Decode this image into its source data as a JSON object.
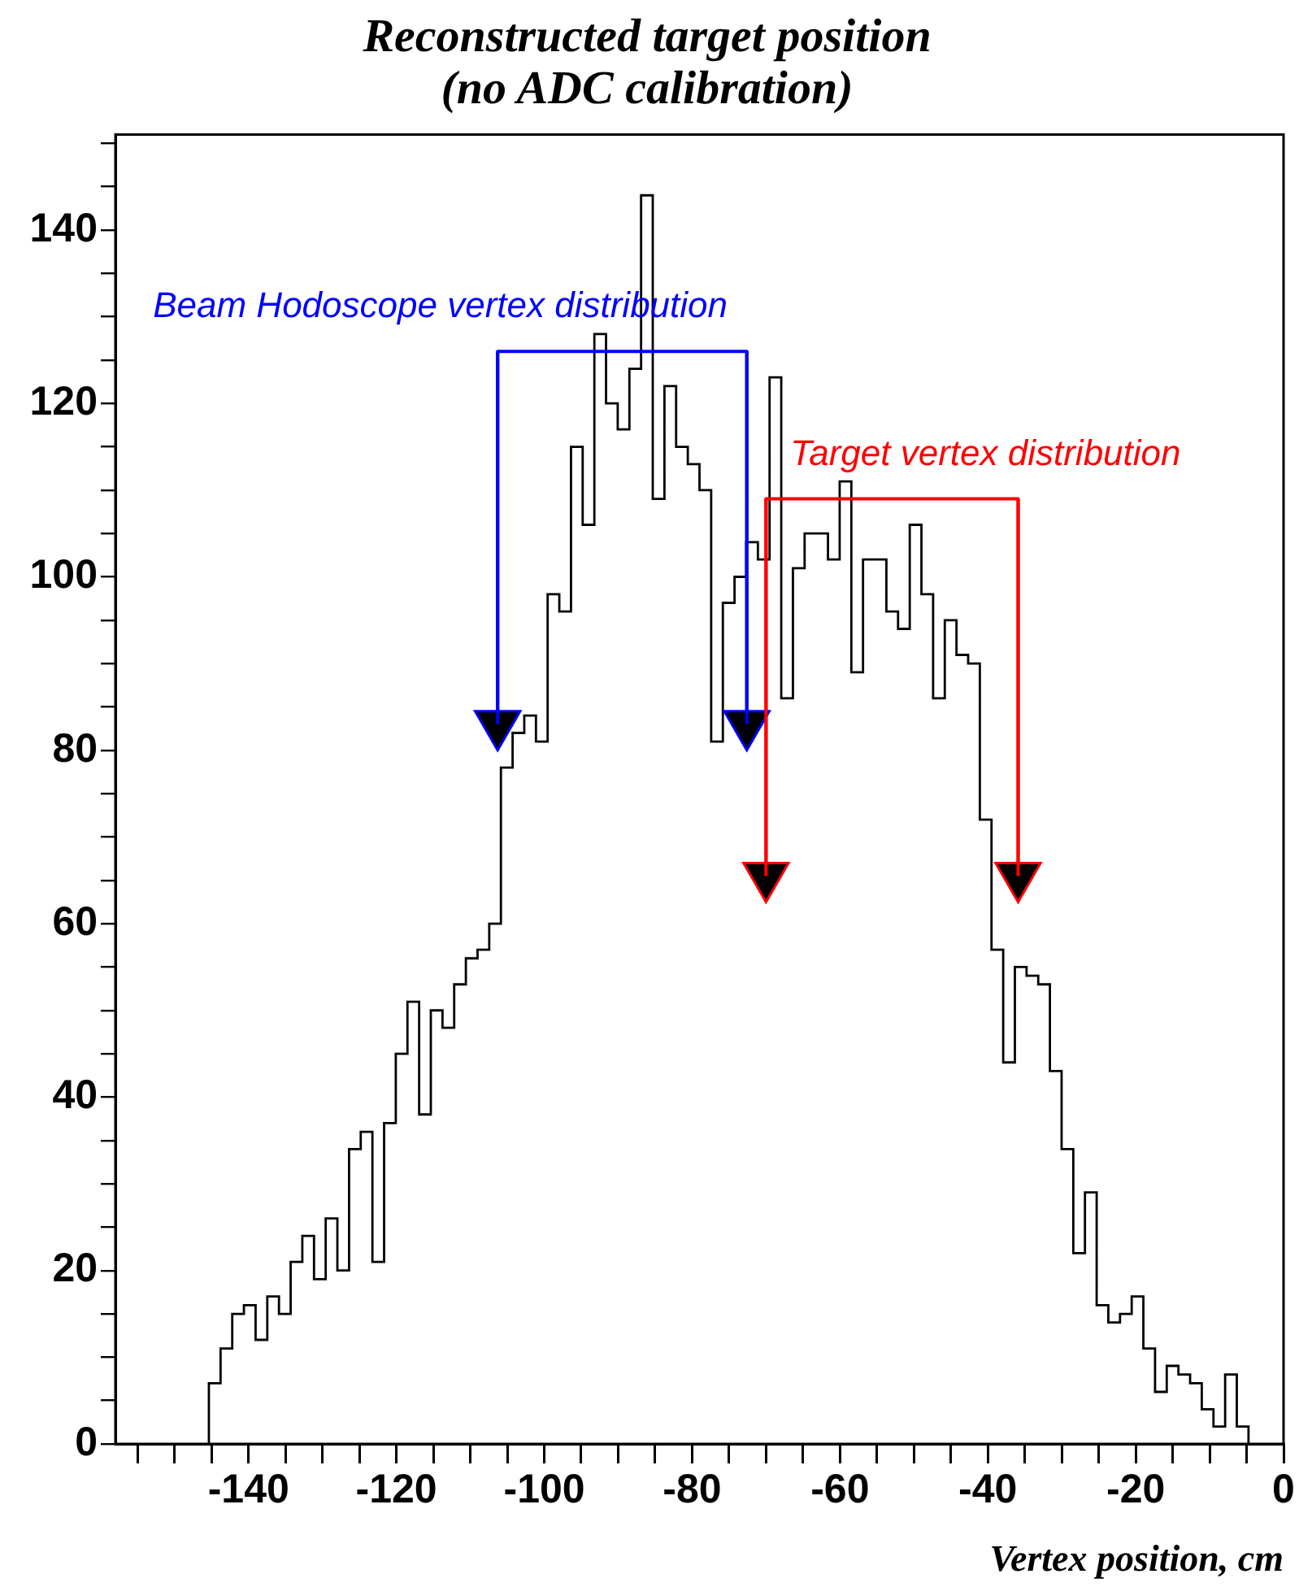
{
  "chart_data": {
    "type": "histogram",
    "title": "Reconstructed target position\n(no ADC calibration)",
    "xlabel": "Vertex position, cm",
    "xlim": [
      -158,
      0
    ],
    "xticks": [
      {
        "value": -155,
        "label": null
      },
      {
        "value": -150,
        "label": null
      },
      {
        "value": -145,
        "label": null
      },
      -140,
      {
        "value": -135,
        "label": null
      },
      {
        "value": -130,
        "label": null
      },
      {
        "value": -125,
        "label": null
      },
      -120,
      {
        "value": -115,
        "label": null
      },
      {
        "value": -110,
        "label": null
      },
      {
        "value": -105,
        "label": null
      },
      -100,
      {
        "value": -95,
        "label": null
      },
      {
        "value": -90,
        "label": null
      },
      {
        "value": -85,
        "label": null
      },
      -80,
      {
        "value": -75,
        "label": null
      },
      {
        "value": -70,
        "label": null
      },
      {
        "value": -65,
        "label": null
      },
      -60,
      {
        "value": -55,
        "label": null
      },
      {
        "value": -50,
        "label": null
      },
      {
        "value": -45,
        "label": null
      },
      -40,
      {
        "value": -35,
        "label": null
      },
      {
        "value": -30,
        "label": null
      },
      {
        "value": -25,
        "label": null
      },
      -20,
      {
        "value": -15,
        "label": null
      },
      {
        "value": -10,
        "label": null
      },
      {
        "value": -5,
        "label": null
      },
      0
    ],
    "ylim": [
      0,
      151
    ],
    "yticks": [
      0,
      {
        "value": 5,
        "label": null
      },
      {
        "value": 10,
        "label": null
      },
      {
        "value": 15,
        "label": null
      },
      20,
      {
        "value": 25,
        "label": null
      },
      {
        "value": 30,
        "label": null
      },
      {
        "value": 35,
        "label": null
      },
      40,
      {
        "value": 45,
        "label": null
      },
      {
        "value": 50,
        "label": null
      },
      {
        "value": 55,
        "label": null
      },
      60,
      {
        "value": 65,
        "label": null
      },
      {
        "value": 70,
        "label": null
      },
      {
        "value": 75,
        "label": null
      },
      80,
      {
        "value": 85,
        "label": null
      },
      {
        "value": 90,
        "label": null
      },
      {
        "value": 95,
        "label": null
      },
      100,
      {
        "value": 105,
        "label": null
      },
      {
        "value": 110,
        "label": null
      },
      {
        "value": 115,
        "label": null
      },
      120,
      {
        "value": 125,
        "label": null
      },
      {
        "value": 130,
        "label": null
      },
      {
        "value": 135,
        "label": null
      },
      140,
      {
        "value": 145,
        "label": null
      },
      {
        "value": 150,
        "label": null
      }
    ],
    "series": [
      {
        "type": "histogram",
        "color": "#000000",
        "bins": [
          -145.36,
          -143.78,
          -142.2,
          -140.62,
          -139.04,
          -137.46,
          -135.88,
          -134.3,
          -132.72,
          -131.14,
          -129.56,
          -127.98,
          -126.4,
          -124.82,
          -123.24,
          -121.66,
          -120.08,
          -118.5,
          -116.92,
          -115.34,
          -113.76,
          -112.18,
          -110.6,
          -109.02,
          -107.44,
          -105.86,
          -104.28,
          -102.7,
          -101.12,
          -99.54,
          -97.96,
          -96.38,
          -94.8,
          -93.22,
          -91.64,
          -90.06,
          -88.48,
          -86.9,
          -85.32,
          -83.74,
          -82.16,
          -80.58,
          -79,
          -77.42,
          -75.84,
          -74.26,
          -72.68,
          -71.1,
          -69.52,
          -67.94,
          -66.36,
          -64.78,
          -63.2,
          -61.62,
          -60.04,
          -58.46,
          -56.88,
          -55.3,
          -53.72,
          -52.14,
          -50.56,
          -48.98,
          -47.4,
          -45.82,
          -44.24,
          -42.66,
          -41.08,
          -39.5,
          -37.92,
          -36.34,
          -34.76,
          -33.18,
          -31.6,
          -30.02,
          -28.44,
          -26.86,
          -25.28,
          -23.7,
          -22.12,
          -20.54,
          -18.96,
          -17.38,
          -15.8,
          -14.22,
          -12.64,
          -11.06,
          -9.48,
          -7.9,
          -6.32,
          -4.74
        ],
        "values": [
          7,
          11,
          15,
          16,
          12,
          17,
          15,
          21,
          24,
          19,
          26,
          20,
          34,
          36,
          21,
          37,
          45,
          51,
          38,
          50,
          48,
          53,
          56,
          57,
          60,
          78,
          82,
          84,
          81,
          98,
          96,
          115,
          106,
          128,
          120,
          117,
          124,
          144,
          109,
          122,
          115,
          113,
          110,
          81,
          97,
          100,
          104,
          102,
          123,
          86,
          101,
          105,
          105,
          102,
          111,
          89,
          102,
          102,
          96,
          94,
          106,
          98,
          86,
          95,
          91,
          90,
          72,
          57,
          44,
          55,
          54,
          53,
          43,
          34,
          22,
          29,
          16,
          14,
          15,
          17,
          11,
          6,
          9,
          8,
          7,
          4,
          2,
          8,
          2
        ]
      },
      {
        "type": "line",
        "color": "#0000ff",
        "marker": "triangle",
        "x": [
          -106.3,
          -106.3,
          -72.6,
          -72.6
        ],
        "values": [
          83,
          126,
          126,
          83
        ]
      },
      {
        "type": "line",
        "color": "#ff0000",
        "marker": "triangle",
        "x": [
          -70,
          -70,
          -35.9,
          -35.9
        ],
        "values": [
          65.5,
          109,
          109,
          65.5
        ]
      }
    ],
    "annotations": [
      {
        "text": "Beam Hodoscope vertex distribution",
        "x": -106.3,
        "y": 126
      },
      {
        "text": "Target vertex distribution",
        "x": -70,
        "y": 109
      }
    ]
  }
}
